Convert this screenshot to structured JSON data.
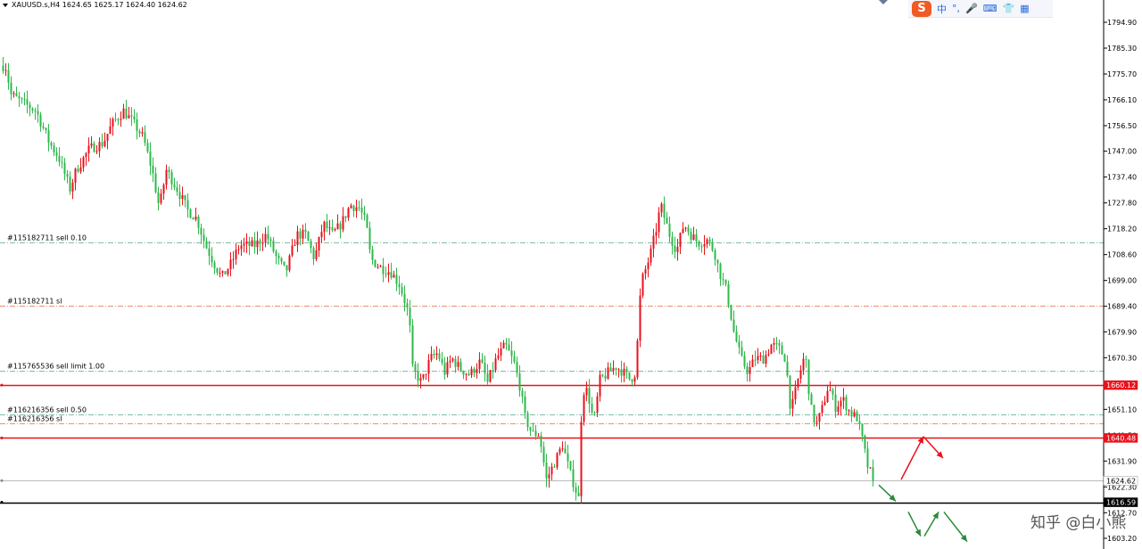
{
  "window": {
    "symbol_header": "XAUUSD.s,H4  1624.65 1625.17 1624.40 1624.62"
  },
  "ime_toolbar": {
    "logo": "S",
    "lang": "中",
    "punct": "°,",
    "icons": [
      "microphone-icon",
      "keyboard-icon",
      "skin-icon",
      "apps-icon"
    ]
  },
  "watermark": "知乎 @白小熊",
  "price_axis": {
    "ticks": [
      "1794.90",
      "1785.30",
      "1775.70",
      "1766.10",
      "1756.50",
      "1747.00",
      "1737.40",
      "1727.80",
      "1718.20",
      "1708.60",
      "1699.00",
      "1689.40",
      "1679.90",
      "1670.30",
      "1660.70",
      "1651.10",
      "1641.50",
      "1631.90",
      "1622.30",
      "1612.70",
      "1603.20"
    ],
    "markers": [
      {
        "label": "1660.12",
        "price": 1660.12,
        "color": "#e8121c",
        "text_color": "#ffffff"
      },
      {
        "label": "1640.48",
        "price": 1640.48,
        "color": "#e8121c",
        "text_color": "#ffffff"
      },
      {
        "label": "1624.62",
        "price": 1624.62,
        "color": "#ffffff",
        "text_color": "#000000"
      },
      {
        "label": "1616.59",
        "price": 1616.59,
        "color": "#000000",
        "text_color": "#ffffff"
      }
    ]
  },
  "order_lines": [
    {
      "label": "#115182711 sell 0.10",
      "price": 1713.2,
      "color": "#7fbfa8",
      "style": "dashdot"
    },
    {
      "label": "#115182711 sl",
      "price": 1689.6,
      "color": "#e89070",
      "style": "dashdot"
    },
    {
      "label": "#115765536 sell limit 1.00",
      "price": 1665.4,
      "color": "#7fbfa8",
      "style": "dashdot"
    },
    {
      "label": "#116216356 sell 0.50",
      "price": 1649.3,
      "color": "#7fbfa8",
      "style": "dashdot"
    },
    {
      "label": "#116216356 sl",
      "price": 1645.8,
      "color": "#e89070",
      "style": "dashdot"
    }
  ],
  "horizontal_lines": [
    {
      "price": 1660.12,
      "color": "#e8121c"
    },
    {
      "price": 1640.48,
      "color": "#e8121c"
    },
    {
      "price": 1624.62,
      "color": "#bbbbbb"
    },
    {
      "price": 1616.59,
      "color": "#000000"
    }
  ],
  "chart_data": {
    "type": "candlestick",
    "symbol": "XAUUSD.s",
    "timeframe": "H4",
    "ylim": [
      1600,
      1800
    ],
    "up_color": "#e8121c",
    "down_color": "#2eb84b",
    "path_points": [
      [
        0,
        1777
      ],
      [
        5,
        1780
      ],
      [
        12,
        1768
      ],
      [
        25,
        1765
      ],
      [
        40,
        1762
      ],
      [
        55,
        1750
      ],
      [
        65,
        1745
      ],
      [
        78,
        1733
      ],
      [
        85,
        1740
      ],
      [
        100,
        1748
      ],
      [
        115,
        1750
      ],
      [
        125,
        1757
      ],
      [
        138,
        1762
      ],
      [
        148,
        1758
      ],
      [
        160,
        1752
      ],
      [
        170,
        1740
      ],
      [
        178,
        1726
      ],
      [
        186,
        1740
      ],
      [
        198,
        1733
      ],
      [
        210,
        1725
      ],
      [
        220,
        1722
      ],
      [
        230,
        1712
      ],
      [
        240,
        1705
      ],
      [
        248,
        1700
      ],
      [
        258,
        1705
      ],
      [
        268,
        1712
      ],
      [
        285,
        1712
      ],
      [
        298,
        1716
      ],
      [
        310,
        1707
      ],
      [
        320,
        1702
      ],
      [
        332,
        1716
      ],
      [
        342,
        1716
      ],
      [
        352,
        1707
      ],
      [
        362,
        1720
      ],
      [
        372,
        1716
      ],
      [
        382,
        1720
      ],
      [
        392,
        1727
      ],
      [
        402,
        1726
      ],
      [
        410,
        1720
      ],
      [
        415,
        1707
      ],
      [
        425,
        1704
      ],
      [
        438,
        1702
      ],
      [
        448,
        1697
      ],
      [
        458,
        1686
      ],
      [
        462,
        1666
      ],
      [
        472,
        1661
      ],
      [
        482,
        1670
      ],
      [
        490,
        1672
      ],
      [
        498,
        1665
      ],
      [
        506,
        1670
      ],
      [
        516,
        1666
      ],
      [
        526,
        1664
      ],
      [
        538,
        1669
      ],
      [
        546,
        1661
      ],
      [
        556,
        1670
      ],
      [
        566,
        1675
      ],
      [
        576,
        1668
      ],
      [
        582,
        1660
      ],
      [
        588,
        1648
      ],
      [
        596,
        1642
      ],
      [
        604,
        1642
      ],
      [
        612,
        1625
      ],
      [
        622,
        1632
      ],
      [
        630,
        1638
      ],
      [
        638,
        1628
      ],
      [
        648,
        1618
      ],
      [
        652,
        1658
      ],
      [
        658,
        1658
      ],
      [
        665,
        1646
      ],
      [
        672,
        1662
      ],
      [
        682,
        1665
      ],
      [
        690,
        1667
      ],
      [
        698,
        1665
      ],
      [
        706,
        1662
      ],
      [
        712,
        1665
      ],
      [
        718,
        1698
      ],
      [
        728,
        1708
      ],
      [
        735,
        1718
      ],
      [
        740,
        1727
      ],
      [
        750,
        1716
      ],
      [
        758,
        1710
      ],
      [
        766,
        1720
      ],
      [
        774,
        1716
      ],
      [
        782,
        1713
      ],
      [
        792,
        1714
      ],
      [
        800,
        1710
      ],
      [
        806,
        1702
      ],
      [
        814,
        1695
      ],
      [
        822,
        1680
      ],
      [
        830,
        1670
      ],
      [
        838,
        1665
      ],
      [
        846,
        1670
      ],
      [
        856,
        1670
      ],
      [
        864,
        1675
      ],
      [
        872,
        1674
      ],
      [
        880,
        1670
      ],
      [
        886,
        1650
      ],
      [
        894,
        1662
      ],
      [
        902,
        1672
      ],
      [
        908,
        1652
      ],
      [
        914,
        1645
      ],
      [
        920,
        1650
      ],
      [
        928,
        1660
      ],
      [
        936,
        1652
      ],
      [
        944,
        1655
      ],
      [
        952,
        1650
      ],
      [
        960,
        1648
      ],
      [
        966,
        1640
      ],
      [
        972,
        1630
      ],
      [
        980,
        1624
      ]
    ],
    "close": 1624.62,
    "projection_arrows": [
      {
        "from": [
          1010,
          1625
        ],
        "to": [
          1035,
          1641
        ],
        "color": "#e8121c"
      },
      {
        "from": [
          1035,
          1641
        ],
        "to": [
          1057,
          1633
        ],
        "color": "#e8121c"
      },
      {
        "from": [
          985,
          1623
        ],
        "to": [
          1004,
          1617
        ],
        "color": "#2b8a3a"
      },
      {
        "from": [
          1018,
          1613
        ],
        "to": [
          1032,
          1604
        ],
        "color": "#2b8a3a"
      },
      {
        "from": [
          1036,
          1604
        ],
        "to": [
          1052,
          1613
        ],
        "color": "#2b8a3a"
      },
      {
        "from": [
          1058,
          1613
        ],
        "to": [
          1084,
          1602
        ],
        "color": "#2b8a3a"
      }
    ]
  }
}
